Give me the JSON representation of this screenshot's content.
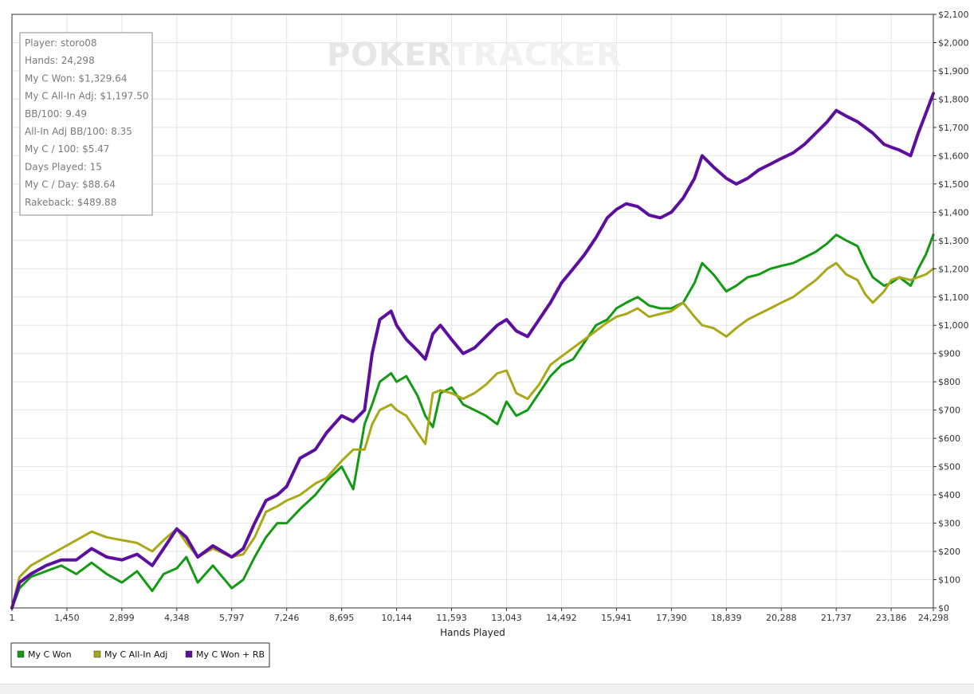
{
  "chart_data": {
    "type": "line",
    "title": "",
    "xlabel": "Hands Played",
    "ylabel": "",
    "xlim": [
      1,
      24298
    ],
    "ylim": [
      0,
      2100
    ],
    "x_ticks": [
      "1",
      "1,450",
      "2,899",
      "4,348",
      "5,797",
      "7,246",
      "8,695",
      "10,144",
      "11,593",
      "13,043",
      "14,492",
      "15,941",
      "17,390",
      "18,839",
      "20,288",
      "21,737",
      "23,186",
      "24,298"
    ],
    "y_ticks": [
      "$0",
      "$100",
      "$200",
      "$300",
      "$400",
      "$500",
      "$600",
      "$700",
      "$800",
      "$900",
      "$1,000",
      "$1,100",
      "$1,200",
      "$1,300",
      "$1,400",
      "$1,500",
      "$1,600",
      "$1,700",
      "$1,800",
      "$1,900",
      "$2,000",
      "$2,100"
    ],
    "grid": true,
    "legend_position": "bottom-left",
    "series": [
      {
        "name": "My C Won",
        "color": "#139a13",
        "x": [
          1,
          200,
          500,
          900,
          1300,
          1700,
          2100,
          2500,
          2900,
          3300,
          3700,
          4000,
          4348,
          4600,
          4900,
          5300,
          5797,
          6100,
          6400,
          6700,
          7000,
          7246,
          7600,
          8000,
          8300,
          8695,
          9000,
          9300,
          9500,
          9700,
          10000,
          10144,
          10400,
          10700,
          10900,
          11100,
          11300,
          11593,
          11900,
          12200,
          12500,
          12800,
          13043,
          13300,
          13600,
          13900,
          14200,
          14492,
          14800,
          15100,
          15400,
          15700,
          15941,
          16200,
          16500,
          16800,
          17100,
          17390,
          17700,
          18000,
          18200,
          18500,
          18839,
          19100,
          19400,
          19700,
          20000,
          20288,
          20600,
          20900,
          21200,
          21500,
          21737,
          22000,
          22300,
          22500,
          22700,
          23000,
          23186,
          23400,
          23700,
          23900,
          24100,
          24298
        ],
        "values": [
          0,
          70,
          110,
          130,
          150,
          120,
          160,
          120,
          90,
          130,
          60,
          120,
          140,
          180,
          90,
          150,
          70,
          100,
          180,
          250,
          300,
          300,
          350,
          400,
          450,
          500,
          420,
          650,
          720,
          800,
          830,
          800,
          820,
          750,
          680,
          640,
          760,
          780,
          720,
          700,
          680,
          650,
          730,
          680,
          700,
          760,
          820,
          860,
          880,
          940,
          1000,
          1020,
          1060,
          1080,
          1100,
          1070,
          1060,
          1060,
          1080,
          1150,
          1220,
          1180,
          1120,
          1140,
          1170,
          1180,
          1200,
          1210,
          1220,
          1240,
          1260,
          1290,
          1320,
          1300,
          1280,
          1220,
          1170,
          1140,
          1150,
          1170,
          1140,
          1200,
          1250,
          1320
        ]
      },
      {
        "name": "My C All-In Adj",
        "color": "#a8a818",
        "x": [
          1,
          200,
          500,
          900,
          1300,
          1700,
          2100,
          2500,
          2900,
          3300,
          3700,
          4000,
          4348,
          4600,
          4900,
          5300,
          5797,
          6100,
          6400,
          6700,
          7000,
          7246,
          7600,
          8000,
          8300,
          8695,
          9000,
          9300,
          9500,
          9700,
          10000,
          10144,
          10400,
          10700,
          10900,
          11100,
          11300,
          11593,
          11900,
          12200,
          12500,
          12800,
          13043,
          13300,
          13600,
          13900,
          14200,
          14492,
          14800,
          15100,
          15400,
          15700,
          15941,
          16200,
          16500,
          16800,
          17100,
          17390,
          17700,
          18000,
          18200,
          18500,
          18839,
          19100,
          19400,
          19700,
          20000,
          20288,
          20600,
          20900,
          21200,
          21500,
          21737,
          22000,
          22300,
          22500,
          22700,
          23000,
          23186,
          23400,
          23700,
          23900,
          24100,
          24298
        ],
        "values": [
          0,
          110,
          150,
          180,
          210,
          240,
          270,
          250,
          240,
          230,
          200,
          240,
          280,
          230,
          180,
          210,
          180,
          190,
          250,
          340,
          360,
          380,
          400,
          440,
          460,
          520,
          560,
          560,
          650,
          700,
          720,
          700,
          680,
          620,
          580,
          760,
          770,
          760,
          740,
          760,
          790,
          830,
          840,
          760,
          740,
          790,
          860,
          890,
          920,
          950,
          980,
          1010,
          1030,
          1040,
          1060,
          1030,
          1040,
          1050,
          1080,
          1030,
          1000,
          990,
          960,
          990,
          1020,
          1040,
          1060,
          1080,
          1100,
          1130,
          1160,
          1200,
          1220,
          1180,
          1160,
          1110,
          1080,
          1120,
          1160,
          1170,
          1160,
          1170,
          1180,
          1200
        ]
      },
      {
        "name": "My C Won + RB",
        "color": "#5c0f9e",
        "x": [
          1,
          200,
          500,
          900,
          1300,
          1700,
          2100,
          2500,
          2900,
          3300,
          3700,
          4000,
          4348,
          4600,
          4900,
          5300,
          5797,
          6100,
          6400,
          6700,
          7000,
          7246,
          7600,
          8000,
          8300,
          8695,
          9000,
          9300,
          9500,
          9700,
          10000,
          10144,
          10400,
          10700,
          10900,
          11100,
          11300,
          11593,
          11900,
          12200,
          12500,
          12800,
          13043,
          13300,
          13600,
          13900,
          14200,
          14492,
          14800,
          15100,
          15400,
          15700,
          15941,
          16200,
          16500,
          16800,
          17100,
          17390,
          17700,
          18000,
          18200,
          18500,
          18839,
          19100,
          19400,
          19700,
          20000,
          20288,
          20600,
          20900,
          21200,
          21500,
          21737,
          22000,
          22300,
          22500,
          22700,
          23000,
          23186,
          23400,
          23700,
          23900,
          24100,
          24298
        ],
        "values": [
          0,
          90,
          120,
          150,
          170,
          170,
          210,
          180,
          170,
          190,
          150,
          210,
          280,
          250,
          180,
          220,
          180,
          210,
          300,
          380,
          400,
          430,
          530,
          560,
          620,
          680,
          660,
          700,
          900,
          1020,
          1050,
          1000,
          950,
          910,
          880,
          970,
          1000,
          950,
          900,
          920,
          960,
          1000,
          1020,
          980,
          960,
          1020,
          1080,
          1150,
          1200,
          1250,
          1310,
          1380,
          1410,
          1430,
          1420,
          1390,
          1380,
          1400,
          1450,
          1520,
          1600,
          1560,
          1520,
          1500,
          1520,
          1550,
          1570,
          1590,
          1610,
          1640,
          1680,
          1720,
          1760,
          1740,
          1720,
          1700,
          1680,
          1640,
          1630,
          1620,
          1600,
          1680,
          1750,
          1820
        ]
      }
    ],
    "watermark": "POKERTRACKER",
    "stats_box": [
      "Player: storo08",
      "Hands: 24,298",
      "My C Won: $1,329.64",
      "My C All-In Adj: $1,197.50",
      "BB/100: 9.49",
      "All-In Adj BB/100: 8.35",
      "My C / 100: $5.47",
      "Days Played: 15",
      "My C / Day: $88.64",
      "Rakeback: $489.88"
    ]
  }
}
